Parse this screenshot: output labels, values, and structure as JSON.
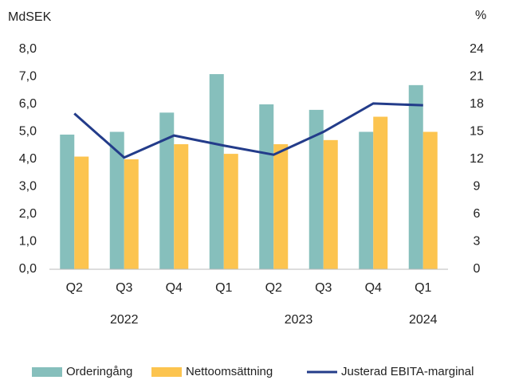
{
  "chart_data": {
    "type": "bar_line",
    "y_label": "MdSEK",
    "y2_label": "%",
    "categories": [
      "Q2",
      "Q3",
      "Q4",
      "Q1",
      "Q2",
      "Q3",
      "Q4",
      "Q1"
    ],
    "year_groups": [
      {
        "label": "2022",
        "count": 3
      },
      {
        "label": "2023",
        "count": 4
      },
      {
        "label": "2024",
        "count": 1
      }
    ],
    "series": [
      {
        "name": "Orderingång",
        "color": "#86bfbc",
        "type": "bar",
        "values": [
          4.9,
          5.0,
          5.7,
          7.1,
          6.0,
          5.8,
          5.0,
          6.7
        ]
      },
      {
        "name": "Nettoomsättning",
        "color": "#fcc44f",
        "type": "bar",
        "values": [
          4.1,
          4.0,
          4.55,
          4.2,
          4.55,
          4.7,
          5.55,
          5.0
        ]
      },
      {
        "name": "Justerad EBITA-marginal",
        "color": "#233c8a",
        "type": "line",
        "axis": "y2",
        "values": [
          17.0,
          12.2,
          14.6,
          13.5,
          12.5,
          15.0,
          18.1,
          17.9
        ]
      }
    ],
    "ylim": [
      0,
      8
    ],
    "yticks": [
      {
        "value": 0,
        "label": "0,0"
      },
      {
        "value": 1,
        "label": "1,0"
      },
      {
        "value": 2,
        "label": "2,0"
      },
      {
        "value": 3,
        "label": "3,0"
      },
      {
        "value": 4,
        "label": "4,0"
      },
      {
        "value": 5,
        "label": "5,0"
      },
      {
        "value": 6,
        "label": "6,0"
      },
      {
        "value": 7,
        "label": "7,0"
      },
      {
        "value": 8,
        "label": "8,0"
      }
    ],
    "y2lim": [
      0,
      24
    ],
    "y2ticks": [
      0,
      3,
      6,
      9,
      12,
      15,
      18,
      21,
      24
    ],
    "legend": "bottom"
  }
}
